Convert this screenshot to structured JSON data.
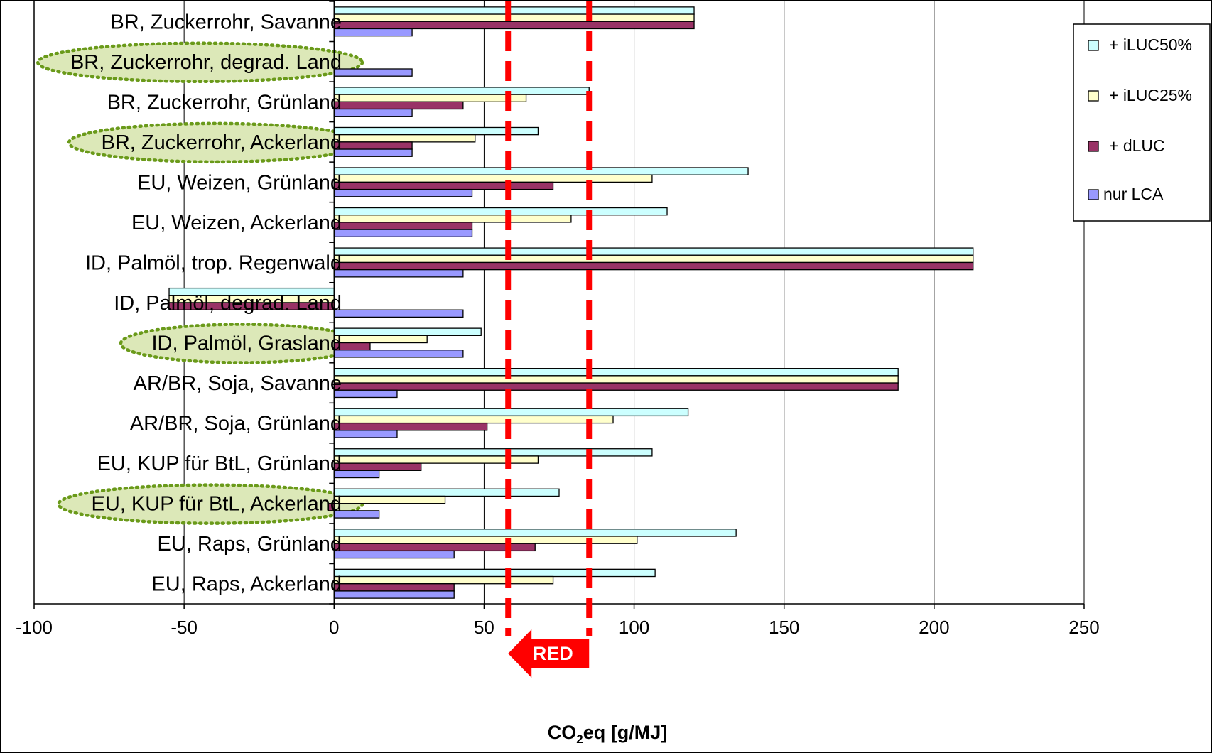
{
  "chart_data": {
    "type": "bar",
    "orientation": "horizontal",
    "categories": [
      "BR, Zuckerrohr, Savanne",
      "BR, Zuckerrohr, degrad. Land",
      "BR, Zuckerrohr, Grünland",
      "BR, Zuckerrohr, Ackerland",
      "EU, Weizen, Grünland",
      "EU, Weizen, Ackerland",
      "ID, Palmöl, trop. Regenwald",
      "ID, Palmöl, degrad. Land",
      "ID, Palmöl, Grasland",
      "AR/BR, Soja, Savanne",
      "AR/BR, Soja, Grünland",
      "EU, KUP für BtL, Grünland",
      "EU, KUP für BtL, Ackerland",
      "EU, Raps, Grünland",
      "EU, Raps, Ackerland"
    ],
    "highlighted_categories": [
      "BR, Zuckerrohr, degrad. Land",
      "BR, Zuckerrohr, Ackerland",
      "ID, Palmöl, Grasland",
      "EU, KUP für BtL, Ackerland"
    ],
    "series": [
      {
        "name": "+ iLUC50%",
        "color": "#ccffff",
        "values": [
          120,
          0,
          85,
          68,
          138,
          111,
          213,
          -55,
          49,
          188,
          118,
          106,
          75,
          134,
          107
        ]
      },
      {
        "name": "+ iLUC25%",
        "color": "#ffffcc",
        "values": [
          120,
          0,
          64,
          47,
          106,
          79,
          213,
          -55,
          31,
          188,
          93,
          68,
          37,
          101,
          73
        ]
      },
      {
        "name": "+ dLUC",
        "color": "#993366",
        "values": [
          120,
          0,
          43,
          26,
          73,
          46,
          213,
          -55,
          12,
          188,
          51,
          29,
          -2,
          67,
          40
        ]
      },
      {
        "name": "nur LCA",
        "color": "#9999ff",
        "values": [
          26,
          26,
          26,
          26,
          46,
          46,
          43,
          43,
          43,
          21,
          21,
          15,
          15,
          40,
          40
        ]
      }
    ],
    "xlim": [
      -100,
      250
    ],
    "xticks": [
      "-100",
      "-50",
      "0",
      "50",
      "100",
      "150",
      "200",
      "250"
    ],
    "xlabel_main": "CO",
    "xlabel_sub": "2",
    "xlabel_rest": "eq [g/MJ]",
    "grid": true,
    "legend_position": "top-right",
    "reference_lines": [
      58,
      85
    ],
    "reference_color": "#ff0000",
    "red_label": "RED"
  }
}
